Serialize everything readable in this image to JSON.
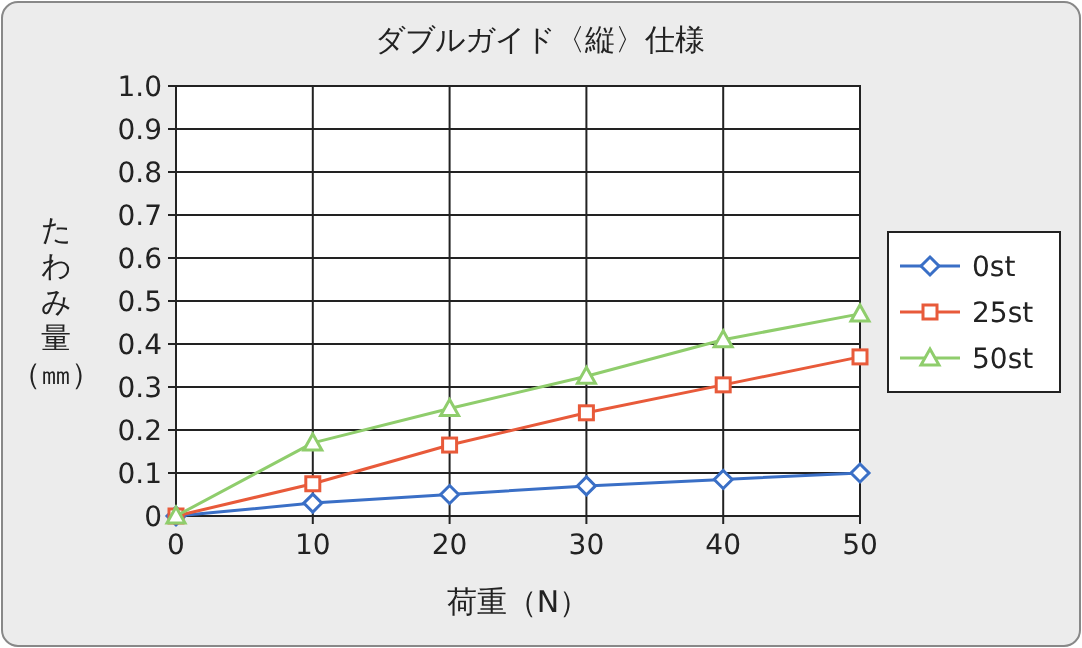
{
  "chart_data": {
    "type": "line",
    "title": "ダブルガイド〈縦〉仕様",
    "xlabel": "荷重（N）",
    "ylabel": "たわみ量（㎜）",
    "x": [
      0,
      10,
      20,
      30,
      40,
      50
    ],
    "xlim": [
      0,
      50
    ],
    "xticks": [
      0,
      10,
      20,
      30,
      40,
      50
    ],
    "ylim": [
      0,
      1
    ],
    "yticks": [
      {
        "value": 0,
        "label": "0"
      },
      0.1,
      0.2,
      0.3,
      0.4,
      0.5,
      0.6,
      0.7,
      0.8,
      0.9,
      {
        "value": 1,
        "label": "1.0"
      }
    ],
    "grid": true,
    "legend": "right",
    "line_style": "solid",
    "series": [
      {
        "name": "0st",
        "color": "#3a6fc6",
        "marker": "diamond",
        "values": [
          0,
          0.03,
          0.05,
          0.07,
          0.085,
          0.1
        ]
      },
      {
        "name": "25st",
        "color": "#e85a3a",
        "marker": "square",
        "values": [
          0,
          0.075,
          0.165,
          0.24,
          0.305,
          0.37
        ]
      },
      {
        "name": "50st",
        "color": "#8fcd6c",
        "marker": "triangle",
        "values": [
          0,
          0.17,
          0.25,
          0.325,
          0.41,
          0.47
        ]
      }
    ]
  }
}
